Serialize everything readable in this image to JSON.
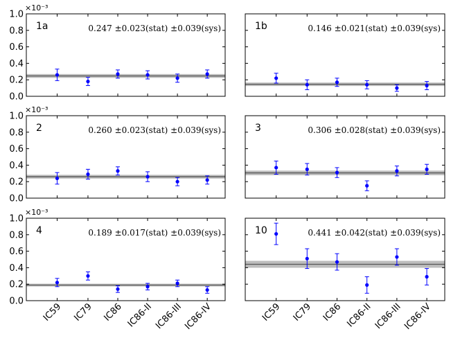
{
  "chart_data": {
    "type": "scatter",
    "categories": [
      "IC59",
      "IC79",
      "IC86",
      "IC86-II",
      "IC86-III",
      "IC86-IV"
    ],
    "y_multiplier": "×10⁻³",
    "ylim": [
      0.0,
      1.0
    ],
    "yticks": [
      "0.0",
      "0.2",
      "0.4",
      "0.6",
      "0.8",
      "1.0"
    ],
    "panels": [
      {
        "label": "1a",
        "annotation": "0.247 ±0.023(stat) ±0.039(sys)",
        "fit": 0.247,
        "fit_err": 0.023,
        "values": [
          0.26,
          0.18,
          0.27,
          0.26,
          0.22,
          0.27
        ],
        "errors": [
          0.07,
          0.05,
          0.05,
          0.05,
          0.05,
          0.05
        ]
      },
      {
        "label": "1b",
        "annotation": "0.146 ±0.021(stat) ±0.039(sys)",
        "fit": 0.146,
        "fit_err": 0.021,
        "values": [
          0.22,
          0.14,
          0.17,
          0.14,
          0.1,
          0.13
        ],
        "errors": [
          0.06,
          0.06,
          0.05,
          0.05,
          0.04,
          0.05
        ]
      },
      {
        "label": "2",
        "annotation": "0.260 ±0.023(stat) ±0.039(sys)",
        "fit": 0.26,
        "fit_err": 0.023,
        "values": [
          0.24,
          0.29,
          0.33,
          0.26,
          0.2,
          0.22
        ],
        "errors": [
          0.07,
          0.06,
          0.05,
          0.06,
          0.05,
          0.05
        ]
      },
      {
        "label": "3",
        "annotation": "0.306 ±0.028(stat) ±0.039(sys)",
        "fit": 0.306,
        "fit_err": 0.028,
        "values": [
          0.37,
          0.35,
          0.31,
          0.15,
          0.33,
          0.35
        ],
        "errors": [
          0.08,
          0.07,
          0.06,
          0.06,
          0.06,
          0.06
        ]
      },
      {
        "label": "4",
        "annotation": "0.189 ±0.017(stat) ±0.039(sys)",
        "fit": 0.189,
        "fit_err": 0.017,
        "values": [
          0.22,
          0.3,
          0.14,
          0.17,
          0.21,
          0.13
        ],
        "errors": [
          0.05,
          0.05,
          0.04,
          0.04,
          0.04,
          0.04
        ]
      },
      {
        "label": "10",
        "annotation": "0.441 ±0.042(stat) ±0.039(sys)",
        "fit": 0.441,
        "fit_err": 0.042,
        "values": [
          0.81,
          0.51,
          0.47,
          0.19,
          0.53,
          0.29
        ],
        "errors": [
          0.13,
          0.12,
          0.1,
          0.1,
          0.1,
          0.1
        ]
      }
    ]
  },
  "colors": {
    "points": "#0000ff",
    "fit_line": "#555555",
    "fit_band": "#bdbdbd"
  }
}
